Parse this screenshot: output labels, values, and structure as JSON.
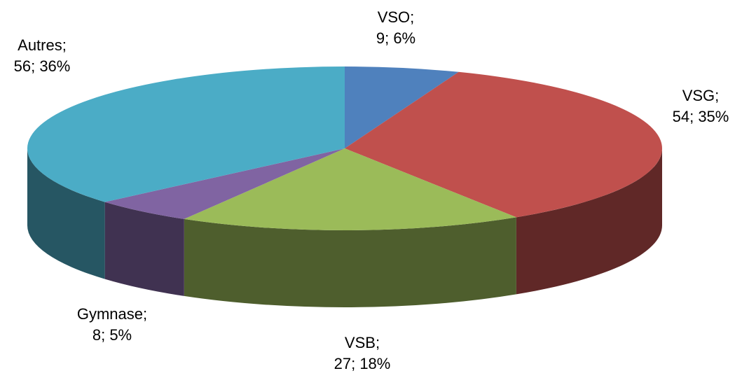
{
  "chart_data": {
    "type": "pie3d",
    "categories": [
      "VSO;",
      "VSG;",
      "VSB;",
      "Gymnase;",
      "Autres;"
    ],
    "values": [
      9,
      54,
      27,
      8,
      56
    ],
    "value_labels": [
      "9; 6%",
      "54; 35%",
      "27; 18%",
      "8; 5%",
      "56; 36%"
    ],
    "colors": [
      "#4f81bd",
      "#c0504d",
      "#9bbb59",
      "#8064a2",
      "#4bacc6"
    ]
  }
}
